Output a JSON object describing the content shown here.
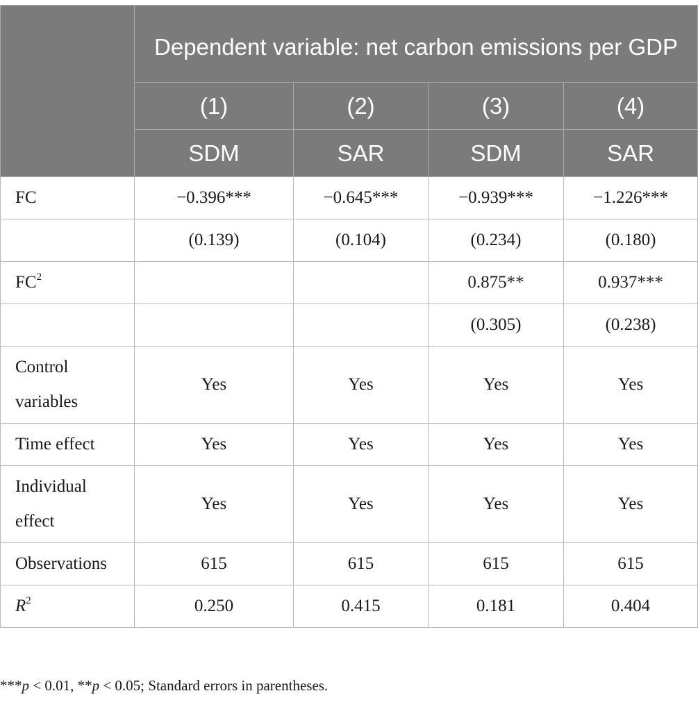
{
  "header": {
    "dependent_variable": "Dependent variable: net carbon emissions per GDP",
    "columns": [
      {
        "num": "(1)",
        "model": "SDM"
      },
      {
        "num": "(2)",
        "model": "SAR"
      },
      {
        "num": "(3)",
        "model": "SDM"
      },
      {
        "num": "(4)",
        "model": "SAR"
      }
    ]
  },
  "rows": {
    "fc": {
      "label": "FC",
      "values": [
        "−0.396***",
        "−0.645***",
        "−0.939***",
        "−1.226***"
      ]
    },
    "fc_se": {
      "label": "",
      "values": [
        "(0.139)",
        "(0.104)",
        "(0.234)",
        "(0.180)"
      ]
    },
    "fc2": {
      "label": "FC",
      "sup": "2",
      "values": [
        "",
        "",
        "0.875**",
        "0.937***"
      ]
    },
    "fc2_se": {
      "label": "",
      "values": [
        "",
        "",
        "(0.305)",
        "(0.238)"
      ]
    },
    "controls": {
      "label_line1": "Control",
      "label_line2": "variables",
      "values": [
        "Yes",
        "Yes",
        "Yes",
        "Yes"
      ]
    },
    "time": {
      "label": "Time effect",
      "values": [
        "Yes",
        "Yes",
        "Yes",
        "Yes"
      ]
    },
    "individual": {
      "label_line1": "Individual",
      "label_line2": "effect",
      "values": [
        "Yes",
        "Yes",
        "Yes",
        "Yes"
      ]
    },
    "obs": {
      "label": "Observations",
      "values": [
        "615",
        "615",
        "615",
        "615"
      ]
    },
    "r2": {
      "label": "R",
      "sup": "2",
      "values": [
        "0.250",
        "0.415",
        "0.181",
        "0.404"
      ]
    }
  },
  "footnote": {
    "stars3": "***",
    "p1": "p",
    "t1": " < 0.01, ",
    "stars2": "**",
    "p2": "p",
    "t2": " < 0.05; Standard errors in parentheses."
  }
}
